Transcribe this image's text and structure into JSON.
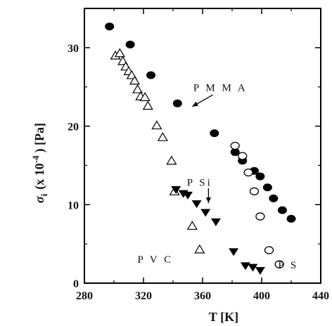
{
  "chart_data": {
    "type": "scatter",
    "title": "",
    "xlabel": "T [K]",
    "ylabel": "σ_i (x 10^-4 ) [Pa]",
    "ylabel_parts": {
      "sigma": "σ",
      "sub": "i",
      "open": "(x 10",
      "exp": "-4",
      "close": ")  [Pa]"
    },
    "xlim": [
      280,
      440
    ],
    "ylim": [
      0,
      35
    ],
    "xticks": [
      280,
      320,
      360,
      400,
      440
    ],
    "xtick_labels": [
      "280",
      "320",
      "360",
      "400",
      "440"
    ],
    "yticks": [
      0,
      10,
      20,
      30
    ],
    "ytick_labels": [
      "0",
      "10",
      "20",
      "30"
    ],
    "grid": false,
    "series": [
      {
        "name": "PMMA",
        "marker": "filled-circle",
        "points": [
          [
            297,
            32.7
          ],
          [
            311,
            30.4
          ],
          [
            325,
            26.5
          ],
          [
            343,
            22.9
          ],
          [
            368,
            19.1
          ],
          [
            382,
            16.7
          ],
          [
            387,
            15.6
          ],
          [
            395,
            14.3
          ],
          [
            399,
            13.6
          ],
          [
            404,
            12.2
          ],
          [
            408,
            10.8
          ],
          [
            414,
            9.3
          ],
          [
            420,
            8.2
          ]
        ]
      },
      {
        "name": "PS",
        "marker": "open-circle",
        "points": [
          [
            382,
            17.5
          ],
          [
            387,
            16.2
          ],
          [
            391,
            14.1
          ],
          [
            395,
            11.7
          ],
          [
            399,
            8.5
          ],
          [
            405,
            4.2
          ],
          [
            412,
            2.4
          ]
        ]
      },
      {
        "name": "PVC",
        "marker": "open-triangle-up",
        "points": [
          [
            301,
            29.0
          ],
          [
            304,
            29.3
          ],
          [
            306,
            28.3
          ],
          [
            308,
            27.6
          ],
          [
            310,
            27.0
          ],
          [
            312,
            26.5
          ],
          [
            314,
            25.8
          ],
          [
            316,
            24.7
          ],
          [
            318,
            23.8
          ],
          [
            321,
            23.7
          ],
          [
            323,
            22.6
          ],
          [
            329,
            20.1
          ],
          [
            333,
            18.6
          ],
          [
            339,
            15.6
          ],
          [
            353,
            7.3
          ],
          [
            358,
            4.3
          ],
          [
            341,
            11.7
          ]
        ]
      },
      {
        "name": "PSi",
        "marker": "filled-triangle-down",
        "points": [
          [
            342,
            11.9
          ],
          [
            347,
            11.4
          ],
          [
            350,
            11.2
          ],
          [
            356,
            10.1
          ],
          [
            362,
            9.0
          ],
          [
            369,
            7.8
          ],
          [
            381,
            4.0
          ],
          [
            389,
            2.2
          ],
          [
            394,
            2.0
          ],
          [
            399,
            1.6
          ]
        ]
      }
    ],
    "annotations": [
      {
        "text": "P M M A",
        "x": 372,
        "y": 24.5
      },
      {
        "text": "P Si",
        "x": 358,
        "y": 12.4
      },
      {
        "text": "P V C",
        "x": 328,
        "y": 2.6
      },
      {
        "text": "P S",
        "x": 418,
        "y": 1.9
      }
    ],
    "arrows": [
      {
        "from": [
          367,
          24.0
        ],
        "to": [
          353,
          22.5
        ]
      },
      {
        "from": [
          364,
          12.1
        ],
        "to": [
          364,
          10.2
        ]
      }
    ]
  }
}
